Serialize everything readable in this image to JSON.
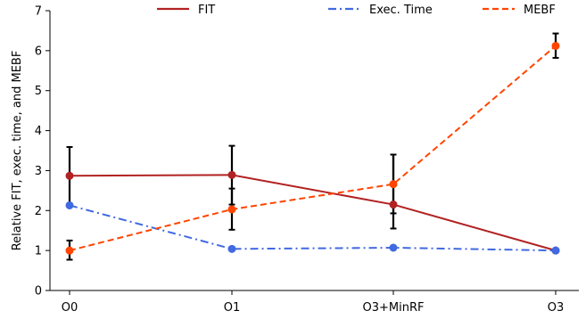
{
  "chart_data": {
    "type": "line",
    "title": "",
    "xlabel": "",
    "ylabel": "Relative FIT, exec. time, and MEBF",
    "categories": [
      "O0",
      "O1",
      "O3+MinRF",
      "O3"
    ],
    "ylim": [
      0,
      7
    ],
    "yticks": [
      0,
      1,
      2,
      3,
      4,
      5,
      6,
      7
    ],
    "grid": false,
    "legend_position": "top-center",
    "series": [
      {
        "name": "FIT",
        "values": [
          2.87,
          2.89,
          2.15,
          1.0
        ],
        "error_low": [
          2.15,
          2.15,
          1.55,
          0.97
        ],
        "error_high": [
          3.59,
          3.62,
          3.4,
          1.03
        ],
        "color": "#b22222",
        "line_style": "solid"
      },
      {
        "name": "Exec. Time",
        "values": [
          2.13,
          1.04,
          1.07,
          1.0
        ],
        "color": "#4169e1",
        "line_style": "dashdot"
      },
      {
        "name": "MEBF",
        "values": [
          1.0,
          2.03,
          2.66,
          6.12
        ],
        "error_low": [
          0.77,
          1.52,
          1.93,
          5.82
        ],
        "error_high": [
          1.25,
          2.55,
          3.4,
          6.43
        ],
        "color": "#ff4500",
        "line_style": "dashed"
      }
    ]
  }
}
